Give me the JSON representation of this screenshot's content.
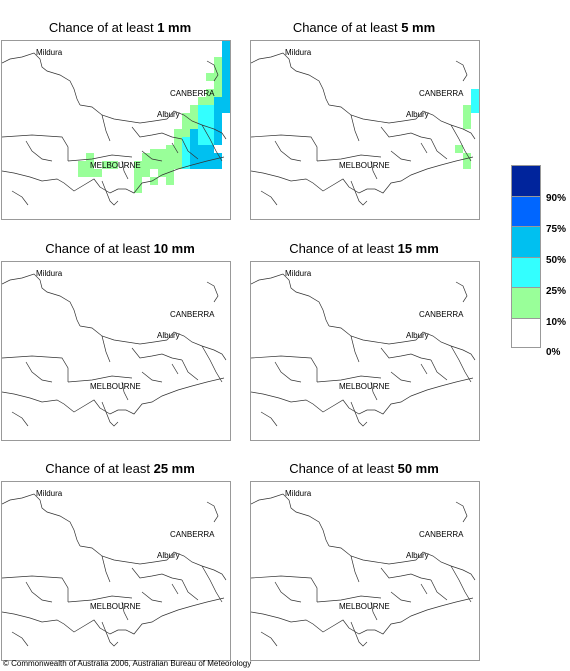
{
  "panels": [
    {
      "prefix": "Chance of at least ",
      "amount": "1 mm"
    },
    {
      "prefix": "Chance of at least ",
      "amount": "5 mm"
    },
    {
      "prefix": "Chance of at least ",
      "amount": "10 mm"
    },
    {
      "prefix": "Chance of at least ",
      "amount": "15 mm"
    },
    {
      "prefix": "Chance of at least ",
      "amount": "25 mm"
    },
    {
      "prefix": "Chance of at least ",
      "amount": "50 mm"
    }
  ],
  "cities": {
    "mildura": "Mildura",
    "canberra": "CANBERRA",
    "albury": "Albury",
    "melbourne": "MELBOURNE"
  },
  "legend": {
    "labels": [
      "90%",
      "75%",
      "50%",
      "25%",
      "10%",
      "0%"
    ],
    "colors": [
      "#00249c",
      "#0066ff",
      "#00c0f0",
      "#33ffff",
      "#99ff99",
      "#ffffff"
    ]
  },
  "copyright": "© Commonwealth of Australia 2006, Australian Bureau of Meteorology"
}
